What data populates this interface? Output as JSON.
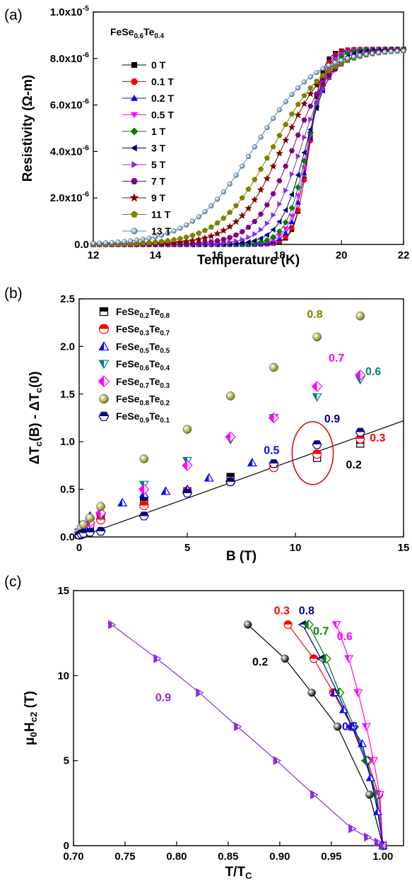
{
  "figure": {
    "labels": [
      "(a)",
      "(b)",
      "(c)"
    ]
  },
  "chart_data": [
    {
      "panel": "(a)",
      "type": "line",
      "title": "FeSe0.6Te0.4",
      "title_main": "FeSe",
      "title_sub1": "0.6",
      "title_mid": "Te",
      "title_sub2": "0.4",
      "xlabel": "Temperature (K)",
      "ylabel": "Resistivity (Ω-m)",
      "xlim": [
        12,
        22
      ],
      "ylim": [
        0,
        1e-05
      ],
      "xticks": [
        "12",
        "14",
        "16",
        "18",
        "20",
        "22"
      ],
      "yticks": [
        "0.0",
        "2.0x10-6",
        "4.0x10-6",
        "6.0x10-6",
        "8.0x10-6",
        "1.0x10-5"
      ],
      "ytick_parts": [
        {
          "base": "0.0",
          "exp": ""
        },
        {
          "base": "2.0x10",
          "exp": "-6"
        },
        {
          "base": "4.0x10",
          "exp": "-6"
        },
        {
          "base": "6.0x10",
          "exp": "-6"
        },
        {
          "base": "8.0x10",
          "exp": "-6"
        },
        {
          "base": "1.0x10",
          "exp": "-5"
        }
      ],
      "rho_max": 8.4e-06,
      "legend_position": "upper-left",
      "grid": false,
      "series": [
        {
          "name": "0 T",
          "tc": 18.95,
          "width": 0.22,
          "color": "#000000",
          "marker": "square"
        },
        {
          "name": "0.1 T",
          "tc": 18.97,
          "width": 0.24,
          "color": "#ff0000",
          "marker": "circle"
        },
        {
          "name": "0.2 T",
          "tc": 18.95,
          "width": 0.27,
          "color": "#0000ff",
          "marker": "triangle-up"
        },
        {
          "name": "0.5 T",
          "tc": 18.93,
          "width": 0.3,
          "color": "#ff00ff",
          "marker": "triangle-down"
        },
        {
          "name": "1 T",
          "tc": 18.9,
          "width": 0.34,
          "color": "#008000",
          "marker": "diamond"
        },
        {
          "name": "3 T",
          "tc": 18.85,
          "width": 0.42,
          "color": "#000080",
          "marker": "triangle-left"
        },
        {
          "name": "5 T",
          "tc": 18.7,
          "width": 0.52,
          "color": "#8a2be2",
          "marker": "triangle-right"
        },
        {
          "name": "7 T",
          "tc": 18.45,
          "width": 0.62,
          "color": "#800080",
          "marker": "hexagon"
        },
        {
          "name": "9 T",
          "tc": 18.1,
          "width": 0.74,
          "color": "#800000",
          "marker": "star"
        },
        {
          "name": "11 T",
          "tc": 17.8,
          "width": 0.86,
          "color": "#808000",
          "marker": "pentagon"
        },
        {
          "name": "13 T",
          "tc": 17.2,
          "width": 1.0,
          "color": "#4a86c8",
          "marker": "sphere"
        }
      ]
    },
    {
      "panel": "(b)",
      "type": "scatter",
      "xlabel": "B (T)",
      "ylabel": "ΔTc(B) - ΔTc(0)",
      "xlim": [
        0,
        15
      ],
      "ylim": [
        0,
        2.5
      ],
      "xticks": [
        "0",
        "5",
        "10",
        "15"
      ],
      "yticks": [
        "0.0",
        "0.5",
        "1.0",
        "1.5",
        "2.0",
        "2.5"
      ],
      "legend_position": "upper-left",
      "grid": false,
      "fit_line": {
        "x": [
          0,
          15
        ],
        "y": [
          0,
          1.22
        ]
      },
      "series": [
        {
          "name": "FeSe0.2Te0.8",
          "se": "0.2",
          "te": "0.8",
          "color": "#000000",
          "marker": "half-square",
          "x": [
            0,
            0.1,
            0.2,
            0.5,
            1,
            3,
            5,
            7,
            9,
            11,
            13
          ],
          "y": [
            0.02,
            0.03,
            0.05,
            0.1,
            0.2,
            0.38,
            0.48,
            0.63,
            0.75,
            0.83,
            0.98
          ]
        },
        {
          "name": "FeSe0.3Te0.7",
          "se": "0.3",
          "te": "0.7",
          "color": "#ff0000",
          "marker": "half-circle",
          "x": [
            0,
            0.1,
            0.2,
            0.5,
            1,
            3,
            5,
            7,
            9,
            11,
            13
          ],
          "y": [
            0.02,
            0.04,
            0.07,
            0.13,
            0.18,
            0.33,
            0.48,
            0.58,
            0.73,
            0.87,
            1.03
          ]
        },
        {
          "name": "FeSe0.5Te0.5",
          "se": "0.5",
          "te": "0.5",
          "color": "#0000ff",
          "marker": "half-triangle-up",
          "x": [
            0,
            0.1,
            0.2,
            0.5,
            1,
            2,
            3,
            4,
            5,
            6,
            8
          ],
          "y": [
            0.03,
            0.07,
            0.12,
            0.22,
            0.27,
            0.36,
            0.45,
            0.48,
            0.5,
            0.62,
            0.78
          ]
        },
        {
          "name": "FeSe0.6Te0.4",
          "se": "0.6",
          "te": "0.4",
          "color": "#008080",
          "marker": "half-triangle-down",
          "x": [
            0,
            0.1,
            0.2,
            0.5,
            1,
            3,
            5,
            7,
            9,
            11,
            13
          ],
          "y": [
            0.05,
            0.08,
            0.13,
            0.17,
            0.22,
            0.55,
            0.8,
            1.02,
            1.25,
            1.47,
            1.65
          ]
        },
        {
          "name": "FeSe0.7Te0.3",
          "se": "0.7",
          "te": "0.3",
          "color": "#ff00ff",
          "marker": "half-diamond",
          "x": [
            0,
            0.1,
            0.2,
            0.5,
            1,
            3,
            5,
            7,
            9,
            11,
            13
          ],
          "y": [
            0.05,
            0.08,
            0.12,
            0.15,
            0.25,
            0.5,
            0.75,
            1.05,
            1.25,
            1.58,
            1.7
          ]
        },
        {
          "name": "FeSe0.8Te0.2",
          "se": "0.8",
          "te": "0.2",
          "color": "#808000",
          "marker": "sphere",
          "x": [
            0,
            0.1,
            0.2,
            0.5,
            1,
            3,
            5,
            7,
            9,
            11,
            13
          ],
          "y": [
            0.05,
            0.1,
            0.13,
            0.2,
            0.32,
            0.82,
            1.13,
            1.48,
            1.78,
            2.1,
            2.32
          ]
        },
        {
          "name": "FeSe0.9Te0.1",
          "se": "0.9",
          "te": "0.1",
          "color": "#000080",
          "marker": "half-hexagon",
          "x": [
            0,
            0.1,
            0.2,
            0.5,
            1,
            3,
            5,
            7,
            9,
            11,
            13
          ],
          "y": [
            0.02,
            0.03,
            0.04,
            0.05,
            0.06,
            0.22,
            0.46,
            0.58,
            0.77,
            0.97,
            1.1
          ]
        }
      ],
      "annotations": [
        {
          "text": "0.8",
          "x": 10.9,
          "y": 2.3,
          "color": "#808000"
        },
        {
          "text": "0.7",
          "x": 11.9,
          "y": 1.84,
          "color": "#ff00ff"
        },
        {
          "text": "0.6",
          "x": 13.6,
          "y": 1.7,
          "color": "#008080"
        },
        {
          "text": "0.9",
          "x": 11.7,
          "y": 1.2,
          "color": "#000080"
        },
        {
          "text": "0.5",
          "x": 8.9,
          "y": 0.87,
          "color": "#0000ff"
        },
        {
          "text": "0.3",
          "x": 13.8,
          "y": 1.0,
          "color": "#ff0000"
        },
        {
          "text": "0.2",
          "x": 12.7,
          "y": 0.72,
          "color": "#000000"
        }
      ],
      "highlight": {
        "shape": "ellipse",
        "x": 10.8,
        "y": 0.88,
        "rx": 0.95,
        "ry": 0.33,
        "color": "#e00000"
      }
    },
    {
      "panel": "(c)",
      "type": "line",
      "xlabel": "T/TC",
      "ylabel": "μ0Hc2 (T)",
      "xlim": [
        0.7,
        1.02
      ],
      "ylim": [
        0,
        15
      ],
      "xticks": [
        "0.70",
        "0.75",
        "0.80",
        "0.85",
        "0.90",
        "0.95",
        "1.00"
      ],
      "yticks": [
        "0",
        "5",
        "10",
        "15"
      ],
      "grid": false,
      "series": [
        {
          "name": "0.2",
          "color": "#000000",
          "marker": "sphere",
          "x": [
            0.869,
            0.905,
            0.931,
            0.956,
            0.987,
            1.0
          ],
          "y": [
            13,
            11,
            9,
            7,
            3,
            0
          ]
        },
        {
          "name": "0.3",
          "color": "#ff0000",
          "marker": "half-circle",
          "x": [
            0.908,
            0.933,
            0.952,
            0.97,
            0.985,
            0.996,
            1.0
          ],
          "y": [
            13,
            11,
            9,
            7,
            5,
            3,
            0
          ]
        },
        {
          "name": "0.8",
          "color": "#000080",
          "marker": "half-triangle-left",
          "x": [
            0.922,
            0.94,
            0.956,
            0.97,
            0.983,
            0.993,
            1.0
          ],
          "y": [
            13,
            11,
            9,
            7,
            5,
            3,
            0
          ]
        },
        {
          "name": "0.7",
          "color": "#008000",
          "marker": "half-diamond",
          "x": [
            0.928,
            0.945,
            0.958,
            0.972,
            0.984,
            0.994,
            1.0
          ],
          "y": [
            13,
            11,
            9,
            7,
            5,
            3,
            0
          ]
        },
        {
          "name": "0.6",
          "color": "#ff00ff",
          "marker": "half-triangle-down",
          "x": [
            0.955,
            0.967,
            0.976,
            0.984,
            0.991,
            0.997,
            1.0
          ],
          "y": [
            13,
            11,
            9,
            7,
            5,
            3,
            0
          ]
        },
        {
          "name": "0.5",
          "color": "#0000ff",
          "marker": "half-triangle-up",
          "x": [
            0.953,
            0.962,
            0.97,
            0.98,
            0.988,
            0.995,
            1.0
          ],
          "y": [
            9,
            8,
            7,
            6,
            4,
            2,
            0
          ]
        },
        {
          "name": "0.9",
          "color": "#8a2be2",
          "marker": "half-triangle-right",
          "x": [
            0.737,
            0.781,
            0.822,
            0.859,
            0.897,
            0.933,
            0.97,
            0.985,
            0.995,
            1.0
          ],
          "y": [
            13,
            11,
            9,
            7,
            5,
            3,
            1,
            0.5,
            0.2,
            0
          ]
        }
      ],
      "annotations": [
        {
          "text": "0.2",
          "x": 0.881,
          "y": 10.6,
          "color": "#000000"
        },
        {
          "text": "0.3",
          "x": 0.902,
          "y": 13.6,
          "color": "#ff0000"
        },
        {
          "text": "0.8",
          "x": 0.926,
          "y": 13.6,
          "color": "#000080"
        },
        {
          "text": "0.7",
          "x": 0.94,
          "y": 12.4,
          "color": "#008000"
        },
        {
          "text": "0.6",
          "x": 0.963,
          "y": 12.1,
          "color": "#ff00ff"
        },
        {
          "text": "0.5",
          "x": 0.968,
          "y": 6.8,
          "color": "#0000ff"
        },
        {
          "text": "0.9",
          "x": 0.787,
          "y": 8.5,
          "color": "#8a2be2"
        }
      ]
    }
  ]
}
